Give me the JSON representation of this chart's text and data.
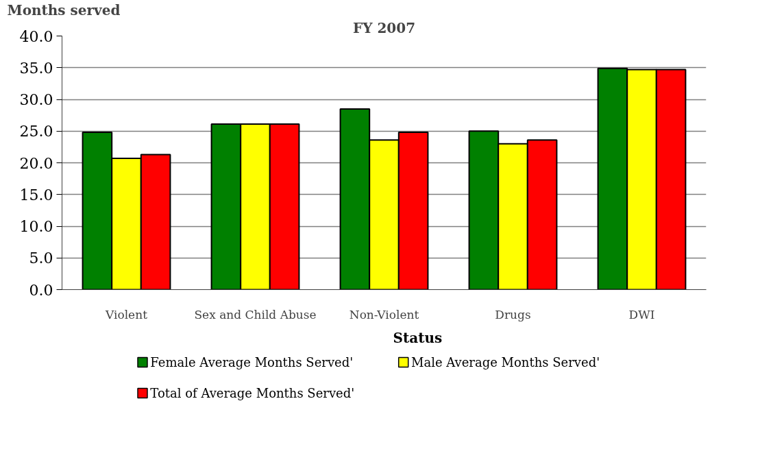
{
  "chart_data": {
    "type": "bar",
    "title": "FY 2007",
    "ylabel": "Months served",
    "legend_title": "Status",
    "categories": [
      "Violent",
      "Sex and Child Abuse",
      "Non-Violent",
      "Drugs",
      "DWI"
    ],
    "series": [
      {
        "name": "Female Average Months Served'",
        "color": "#008000",
        "values": [
          24.8,
          26.1,
          28.5,
          25.0,
          34.9
        ]
      },
      {
        "name": "Male Average Months Served'",
        "color": "#ffff00",
        "values": [
          20.7,
          26.1,
          23.6,
          23.0,
          34.7
        ]
      },
      {
        "name": "Total of Average Months Served'",
        "color": "#ff0000",
        "values": [
          21.3,
          26.1,
          24.8,
          23.6,
          34.7
        ]
      }
    ],
    "ylim": [
      0,
      40
    ],
    "yticks": [
      {
        "value": 0,
        "label": "0.0"
      },
      {
        "value": 5,
        "label": "5.0"
      },
      {
        "value": 10,
        "label": "10.0"
      },
      {
        "value": 15,
        "label": "15.0"
      },
      {
        "value": 20,
        "label": "20.0"
      },
      {
        "value": 25,
        "label": "25.0"
      },
      {
        "value": 30,
        "label": "30.0"
      },
      {
        "value": 35,
        "label": "35.0"
      },
      {
        "value": 40,
        "label": "40.0"
      }
    ],
    "grid": "y",
    "legend": "bottom"
  }
}
